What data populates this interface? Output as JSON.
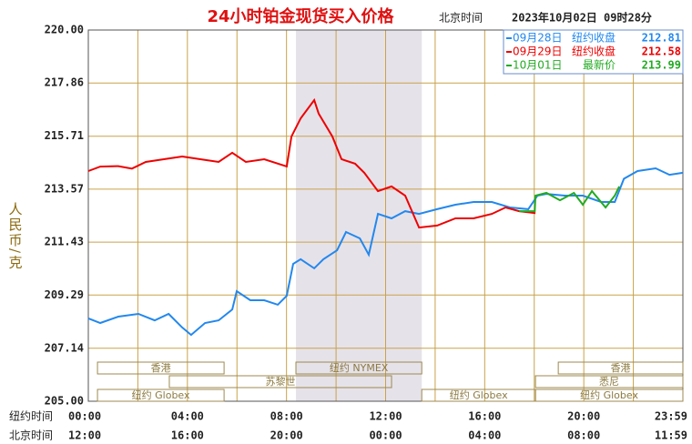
{
  "chart_data": {
    "type": "line",
    "title": "24小时铂金现货买入价格",
    "time_zone_note": "北京时间",
    "timestamp": "2023年10月02日 09时28分",
    "y_label": "人民币/克",
    "ylim": [
      205,
      220
    ],
    "yticks": [
      {
        "value": 205,
        "label": "205.00"
      },
      207.14,
      209.29,
      211.43,
      213.57,
      215.71,
      217.86,
      {
        "value": 220,
        "label": "220.00"
      }
    ],
    "xlim": [
      0,
      24
    ],
    "x_row_label": "纽约时间",
    "xticks": [
      {
        "value": 0,
        "label": "00:00"
      },
      {
        "value": 4,
        "label": "04:00"
      },
      {
        "value": 8,
        "label": "08:00"
      },
      {
        "value": 12,
        "label": "12:00"
      },
      {
        "value": 16,
        "label": "16:00"
      },
      {
        "value": 20,
        "label": "20:00"
      },
      {
        "value": 24,
        "label": "23:59"
      }
    ],
    "x2_row_label": "北京时间",
    "x2_tick_labels": [
      "12:00",
      "16:00",
      "20:00",
      "00:00",
      "04:00",
      "08:00",
      "11:59"
    ],
    "grid_step_hours": 2,
    "grid": true,
    "grid_color": "#c9a24a",
    "series": [
      {
        "name": "09月28日",
        "label": "纽约收盘",
        "price": 212.81,
        "color": "#2288ee",
        "x": [
          0,
          0.48,
          1.21,
          2.02,
          2.68,
          3.24,
          3.79,
          4.15,
          4.71,
          5.26,
          5.81,
          5.99,
          6.54,
          7.1,
          7.65,
          8.01,
          8.27,
          8.57,
          9.12,
          9.49,
          10.04,
          10.4,
          10.96,
          11.32,
          11.69,
          12.24,
          12.79,
          13.35,
          14.08,
          14.82,
          15.55,
          16.29,
          17.02,
          17.76,
          18.13,
          18.49,
          19.23,
          19.96,
          20.7,
          21.25,
          21.62,
          22.17,
          22.9,
          23.46,
          24
        ],
        "values": [
          208.35,
          208.16,
          208.42,
          208.53,
          208.27,
          208.53,
          207.98,
          207.68,
          208.16,
          208.27,
          208.71,
          209.45,
          209.08,
          209.08,
          208.9,
          209.26,
          210.55,
          210.74,
          210.37,
          210.74,
          211.1,
          211.84,
          211.58,
          210.92,
          212.57,
          212.39,
          212.68,
          212.57,
          212.76,
          212.94,
          213.05,
          213.05,
          212.83,
          212.76,
          213.31,
          213.38,
          213.31,
          213.31,
          213.05,
          213.05,
          213.99,
          214.3,
          214.41,
          214.15,
          214.23
        ]
      },
      {
        "name": "09月29日",
        "label": "纽约收盘",
        "price": 212.58,
        "color": "#ee0000",
        "x": [
          0,
          0.48,
          1.21,
          1.76,
          2.32,
          3.05,
          3.79,
          4.52,
          5.26,
          5.81,
          6.36,
          7.1,
          8.01,
          8.2,
          8.57,
          9.12,
          9.3,
          9.85,
          10.22,
          10.77,
          11.14,
          11.69,
          12.24,
          12.79,
          13.35,
          14.08,
          14.82,
          15.55,
          16.29,
          16.84,
          17.39,
          18.05
        ],
        "values": [
          214.3,
          214.48,
          214.5,
          214.4,
          214.67,
          214.78,
          214.89,
          214.78,
          214.67,
          215.04,
          214.67,
          214.78,
          214.49,
          215.7,
          216.43,
          217.17,
          216.62,
          215.7,
          214.78,
          214.6,
          214.23,
          213.49,
          213.68,
          213.31,
          212.02,
          212.1,
          212.39,
          212.39,
          212.57,
          212.83,
          212.68,
          212.6
        ]
      },
      {
        "name": "10月01日",
        "label": "最新价",
        "price": 213.99,
        "color": "#22aa22",
        "x": [
          17.39,
          18.02,
          18.05,
          18.49,
          19.04,
          19.6,
          19.96,
          20.33,
          20.88,
          21.25,
          21.43
        ],
        "values": [
          212.68,
          212.68,
          213.31,
          213.42,
          213.12,
          213.42,
          212.94,
          213.49,
          212.83,
          213.31,
          213.68
        ]
      }
    ],
    "session_rows": [
      {
        "sessions": [
          {
            "label": "香港",
            "start": 0.37,
            "end": 5.48
          },
          {
            "label": "纽约 NYMEX",
            "start": 8.38,
            "end": 13.46,
            "shaded": true
          },
          {
            "label": "香港",
            "start": 18.97,
            "end": 24
          }
        ]
      },
      {
        "sessions": [
          {
            "label": "苏黎世",
            "start": 3.27,
            "end": 12.24
          },
          {
            "label": "悉尼",
            "start": 18.05,
            "end": 24
          }
        ]
      },
      {
        "sessions": [
          {
            "label": "纽约 Globex",
            "start": 0.37,
            "end": 5.48
          },
          {
            "label": "纽约 Globex",
            "start": 13.46,
            "end": 18.05
          },
          {
            "label": "纽约 Globex",
            "start": 18.05,
            "end": 24
          }
        ]
      }
    ]
  }
}
